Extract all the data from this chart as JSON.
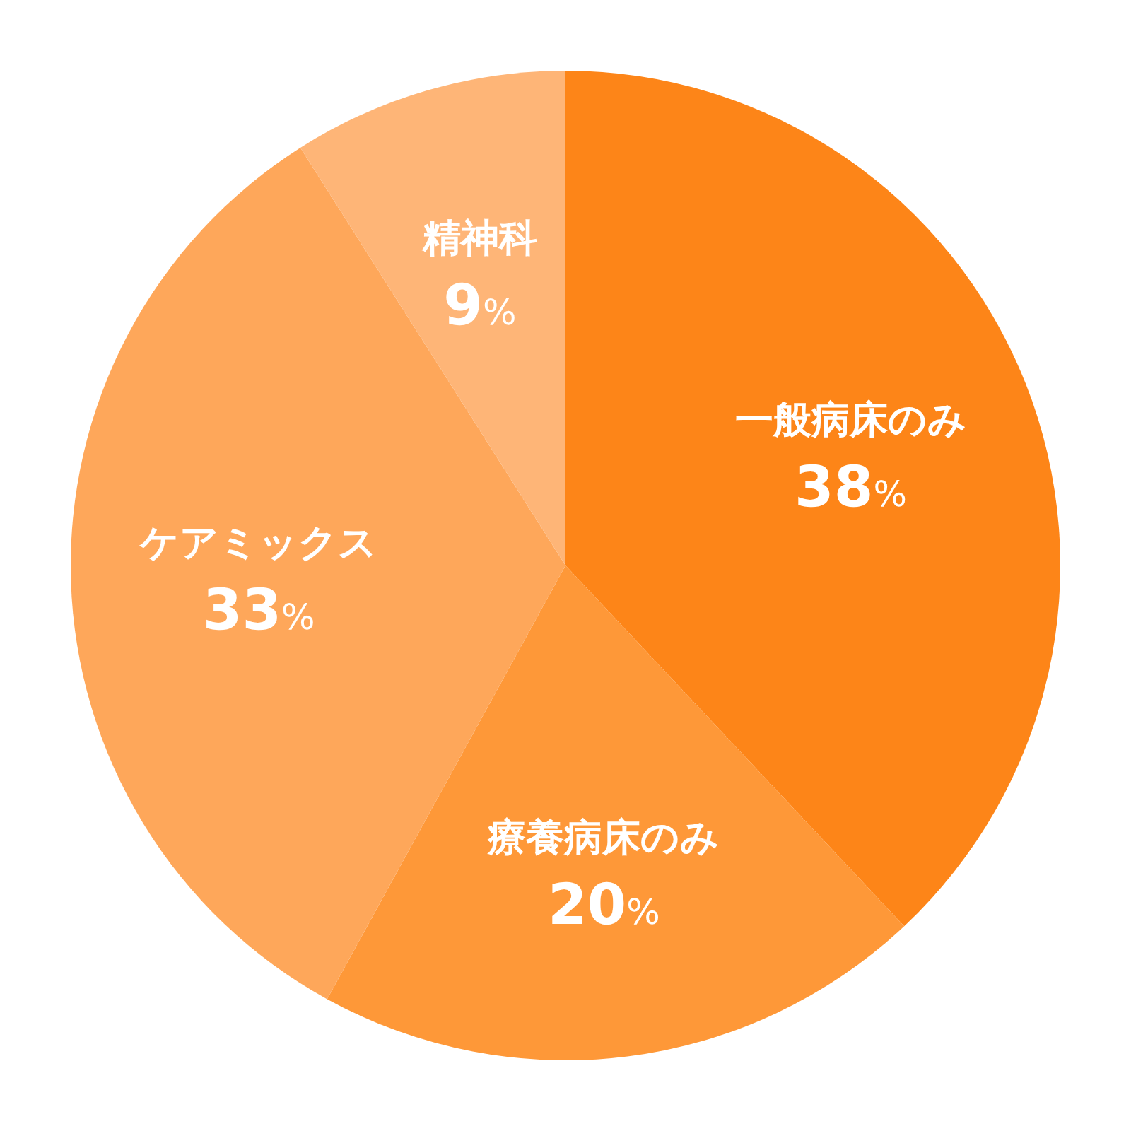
{
  "chart_data": {
    "type": "pie",
    "categories": [
      "一般病床のみ",
      "療養病床のみ",
      "ケアミックス",
      "精神科"
    ],
    "values": [
      38,
      20,
      33,
      9
    ],
    "colors": [
      "#fd8518",
      "#fe9838",
      "#fea75a",
      "#feb577"
    ],
    "value_labels": [
      "38%",
      "20%",
      "33%",
      "9%"
    ]
  }
}
